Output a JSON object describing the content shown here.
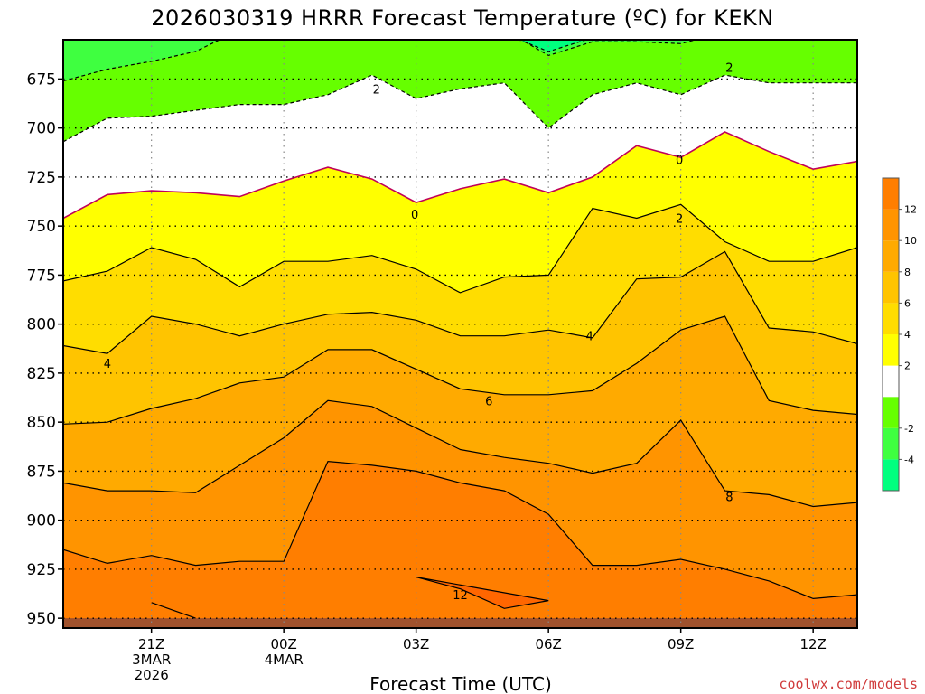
{
  "chart_data": {
    "type": "contour",
    "title": "2026030319 HRRR Forecast Temperature (ºC) for KEKN",
    "xlabel": "Forecast Time (UTC)",
    "ylabel": "",
    "credit": "coolwx.com/models",
    "y_axis": {
      "type": "pressure_hPa",
      "inverted": true,
      "range": [
        655,
        955
      ],
      "ticks": [
        "675",
        "700",
        "725",
        "750",
        "775",
        "800",
        "825",
        "850",
        "875",
        "900",
        "925",
        "950"
      ]
    },
    "x_axis": {
      "range_hours": [
        -2,
        16
      ],
      "ticks": [
        {
          "hour": 0,
          "label": "21Z",
          "line2": "3MAR",
          "line3": "2026"
        },
        {
          "hour": 3,
          "label": "00Z",
          "line2": "4MAR",
          "line3": ""
        },
        {
          "hour": 6,
          "label": "03Z",
          "line2": "",
          "line3": ""
        },
        {
          "hour": 9,
          "label": "06Z",
          "line2": "",
          "line3": ""
        },
        {
          "hour": 12,
          "label": "09Z",
          "line2": "",
          "line3": ""
        },
        {
          "hour": 15,
          "label": "12Z",
          "line2": "",
          "line3": ""
        }
      ]
    },
    "grid": true,
    "ground_level_hPa": 950,
    "colorbar": {
      "placement": "right",
      "levels": [
        -6,
        -4,
        -2,
        0,
        2,
        4,
        6,
        8,
        10,
        12,
        14
      ],
      "tick_labels": [
        "-4",
        "-2",
        "2",
        "4",
        "6",
        "8",
        "10",
        "12"
      ],
      "colors": [
        "#00ff7f",
        "#3fff40",
        "#66ff00",
        "#ffffff",
        "#ffff00",
        "#ffdd00",
        "#ffc400",
        "#ffaa00",
        "#ff9400",
        "#ff7e00",
        "#ff6600"
      ]
    },
    "hours": [
      -2,
      -1,
      0,
      1,
      2,
      3,
      4,
      5,
      6,
      7,
      8,
      9,
      10,
      11,
      12,
      13,
      14,
      15,
      16
    ],
    "contours": [
      {
        "level": -4,
        "pressure": [
          652,
          651,
          651,
          652,
          652,
          652,
          652,
          652,
          652,
          652,
          652,
          661,
          654,
          653,
          655,
          652,
          652,
          652,
          652
        ]
      },
      {
        "level": -2,
        "pressure": [
          676,
          670,
          666,
          661,
          650,
          651,
          653,
          649,
          650,
          650,
          650,
          663,
          656,
          656,
          657,
          651,
          652,
          650,
          650
        ]
      },
      {
        "level": 2,
        "pressure": [
          707,
          695,
          694,
          691,
          688,
          688,
          683,
          673,
          685,
          680,
          677,
          700,
          683,
          677,
          683,
          673,
          677,
          677,
          677
        ]
      },
      {
        "level": 0,
        "pressure": [
          746,
          734,
          732,
          733,
          735,
          727,
          720,
          726,
          738,
          731,
          726,
          733,
          725,
          709,
          715,
          702,
          712,
          721,
          717
        ]
      },
      {
        "level": 2,
        "pressure": [
          778,
          773,
          761,
          767,
          781,
          768,
          768,
          765,
          772,
          784,
          776,
          775,
          741,
          746,
          739,
          758,
          768,
          768,
          761
        ]
      },
      {
        "level": 4,
        "pressure": [
          811,
          815,
          796,
          800,
          806,
          800,
          795,
          794,
          798,
          806,
          806,
          803,
          807,
          777,
          776,
          763,
          802,
          804,
          810
        ]
      },
      {
        "level": 6,
        "pressure": [
          851,
          850,
          843,
          838,
          830,
          827,
          813,
          813,
          823,
          833,
          836,
          836,
          834,
          820,
          803,
          796,
          839,
          844,
          846
        ]
      },
      {
        "level": 8,
        "pressure": [
          881,
          885,
          885,
          886,
          872,
          858,
          839,
          842,
          853,
          864,
          868,
          871,
          876,
          871,
          849,
          885,
          887,
          893,
          891
        ]
      },
      {
        "level": 10,
        "pressure": [
          915,
          922,
          918,
          923,
          921,
          921,
          870,
          872,
          875,
          881,
          885,
          897,
          923,
          923,
          920,
          925,
          931,
          940,
          938
        ]
      },
      {
        "level": 12,
        "pressure": [
          null,
          null,
          null,
          null,
          null,
          null,
          null,
          null,
          929,
          935,
          945,
          941,
          null,
          null,
          null,
          null,
          null,
          null,
          null
        ]
      },
      {
        "level": 12,
        "pressure": [
          null,
          null,
          942,
          950,
          null,
          null,
          null,
          null,
          null,
          null,
          null,
          null,
          null,
          null,
          null,
          null,
          null,
          null,
          null
        ]
      }
    ],
    "labels": [
      {
        "text": "4",
        "hour": -1,
        "pressure": 820
      },
      {
        "text": "2",
        "hour": 5.1,
        "pressure": 680
      },
      {
        "text": "0",
        "hour": 5.97,
        "pressure": 744
      },
      {
        "text": "6",
        "hour": 7.65,
        "pressure": 839
      },
      {
        "text": "4",
        "hour": 9.93,
        "pressure": 806
      },
      {
        "text": "2",
        "hour": 13.1,
        "pressure": 669
      },
      {
        "text": "0",
        "hour": 11.97,
        "pressure": 716
      },
      {
        "text": "2",
        "hour": 11.97,
        "pressure": 746
      },
      {
        "text": "12",
        "hour": 7,
        "pressure": 938
      },
      {
        "text": "8",
        "hour": 13.1,
        "pressure": 888
      }
    ]
  }
}
